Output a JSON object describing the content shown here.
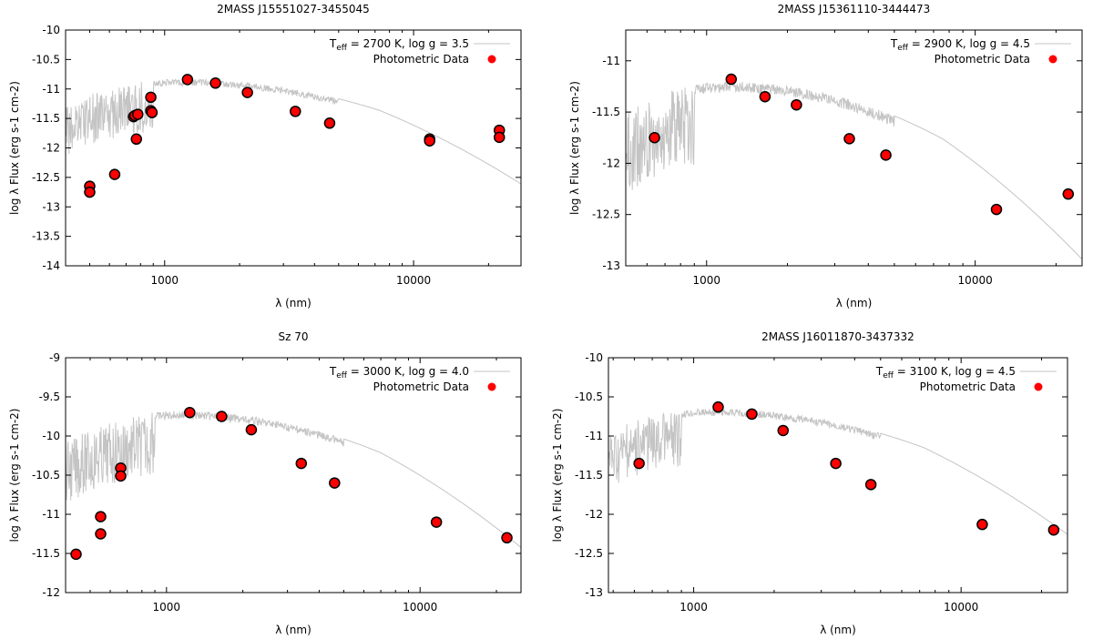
{
  "chart_data": [
    {
      "type": "scatter",
      "title": "2MASS J15551027-3455045",
      "xlabel": "λ (nm)",
      "ylabel": "log λ Flux (erg s-1 cm-2)",
      "xscale": "log",
      "xlim": [
        400,
        27000
      ],
      "ylim": [
        -14,
        -10
      ],
      "ytick_labels": [
        "-14",
        "-13.5",
        "-13",
        "-12.5",
        "-12",
        "-11.5",
        "-11",
        "-10.5",
        "-10"
      ],
      "xtick_labels": [
        "1000",
        "10000"
      ],
      "legend": {
        "position": "top-right",
        "model_prefix": "T",
        "model_sub": "eff",
        "model_suffix": " = 2700 K, log g = 3.5",
        "data_label": "Photometric Data"
      },
      "model": {
        "teff": 2700,
        "logg": 3.5,
        "peak_x": 1150,
        "peak_y": -10.83,
        "sigma": 0.33,
        "spread": 0.55
      },
      "series": [
        {
          "name": "Photometric Data",
          "x": [
            500,
            500,
            630,
            750,
            760,
            770,
            780,
            880,
            880,
            890,
            1235,
            1600,
            2150,
            3350,
            4600,
            11600,
            11600,
            22100,
            22100
          ],
          "y": [
            -12.65,
            -12.75,
            -12.45,
            -11.47,
            -11.45,
            -11.85,
            -11.43,
            -11.14,
            -11.37,
            -11.4,
            -10.84,
            -10.9,
            -11.06,
            -11.38,
            -11.58,
            -11.85,
            -11.88,
            -11.7,
            -11.82
          ]
        }
      ]
    },
    {
      "type": "scatter",
      "title": "2MASS J15361110-3444473",
      "xlabel": "λ (nm)",
      "ylabel": "log λ Flux (erg s-1 cm-2)",
      "xscale": "log",
      "xlim": [
        500,
        25000
      ],
      "ylim": [
        -13,
        -10.7
      ],
      "ytick_labels": [
        "-13",
        "-12.5",
        "-12",
        "-11.5",
        "-11"
      ],
      "ytick_values": [
        -13,
        -12.5,
        -12,
        -11.5,
        -11
      ],
      "xtick_labels": [
        "1000",
        "10000"
      ],
      "legend": {
        "position": "top-right",
        "model_prefix": "T",
        "model_sub": "eff",
        "model_suffix": " = 2900 K, log g = 4.5",
        "data_label": "Photometric Data"
      },
      "model": {
        "teff": 2900,
        "logg": 4.5,
        "peak_x": 1200,
        "peak_y": -11.2,
        "sigma": 0.32,
        "spread": 0.5
      },
      "series": [
        {
          "name": "Photometric Data",
          "x": [
            640,
            1235,
            1650,
            2160,
            3400,
            4650,
            12000,
            22200
          ],
          "y": [
            -11.75,
            -11.18,
            -11.35,
            -11.43,
            -11.76,
            -11.92,
            -12.45,
            -12.3
          ]
        }
      ]
    },
    {
      "type": "scatter",
      "title": "Sz 70",
      "xlabel": "λ (nm)",
      "ylabel": "log λ Flux (erg s-1 cm-2)",
      "xscale": "log",
      "xlim": [
        400,
        25000
      ],
      "ylim": [
        -12,
        -9
      ],
      "ytick_labels": [
        "-12",
        "-11.5",
        "-11",
        "-10.5",
        "-10",
        "-9.5",
        "-9"
      ],
      "xtick_labels": [
        "1000",
        "10000"
      ],
      "legend": {
        "position": "top-right",
        "model_prefix": "T",
        "model_sub": "eff",
        "model_suffix": " = 3000 K, log g = 4.0",
        "data_label": "Photometric Data"
      },
      "model": {
        "teff": 3000,
        "logg": 4.0,
        "peak_x": 1100,
        "peak_y": -9.68,
        "sigma": 0.33,
        "spread": 0.5
      },
      "series": [
        {
          "name": "Photometric Data",
          "x": [
            440,
            550,
            550,
            660,
            660,
            1235,
            1650,
            2160,
            3400,
            4600,
            11600,
            22000
          ],
          "y": [
            -11.51,
            -11.03,
            -11.25,
            -10.41,
            -10.51,
            -9.7,
            -9.75,
            -9.92,
            -10.35,
            -10.6,
            -11.1,
            -11.3
          ]
        }
      ]
    },
    {
      "type": "scatter",
      "title": "2MASS J16011870-3437332",
      "xlabel": "λ (nm)",
      "ylabel": "log λ Flux (erg s-1 cm-2)",
      "xscale": "log",
      "xlim": [
        480,
        25000
      ],
      "ylim": [
        -13,
        -10
      ],
      "ytick_labels": [
        "-13",
        "-12.5",
        "-12",
        "-11.5",
        "-11",
        "-10.5",
        "-10"
      ],
      "xtick_labels": [
        "1000",
        "10000"
      ],
      "legend": {
        "position": "top-right",
        "model_prefix": "T",
        "model_sub": "eff",
        "model_suffix": " = 3100 K, log g = 4.5",
        "data_label": "Photometric Data"
      },
      "model": {
        "teff": 3100,
        "logg": 4.5,
        "peak_x": 1150,
        "peak_y": -10.65,
        "sigma": 0.34,
        "spread": 0.45
      },
      "series": [
        {
          "name": "Photometric Data",
          "x": [
            625,
            1235,
            1650,
            2160,
            3400,
            4600,
            12000,
            22200
          ],
          "y": [
            -11.35,
            -10.63,
            -10.72,
            -10.93,
            -11.35,
            -11.62,
            -12.13,
            -12.2
          ]
        }
      ]
    }
  ],
  "colors": {
    "model_line": "#c4c4c4",
    "marker_fill": "#ff0000",
    "marker_stroke": "#000000",
    "axis": "#000000"
  }
}
